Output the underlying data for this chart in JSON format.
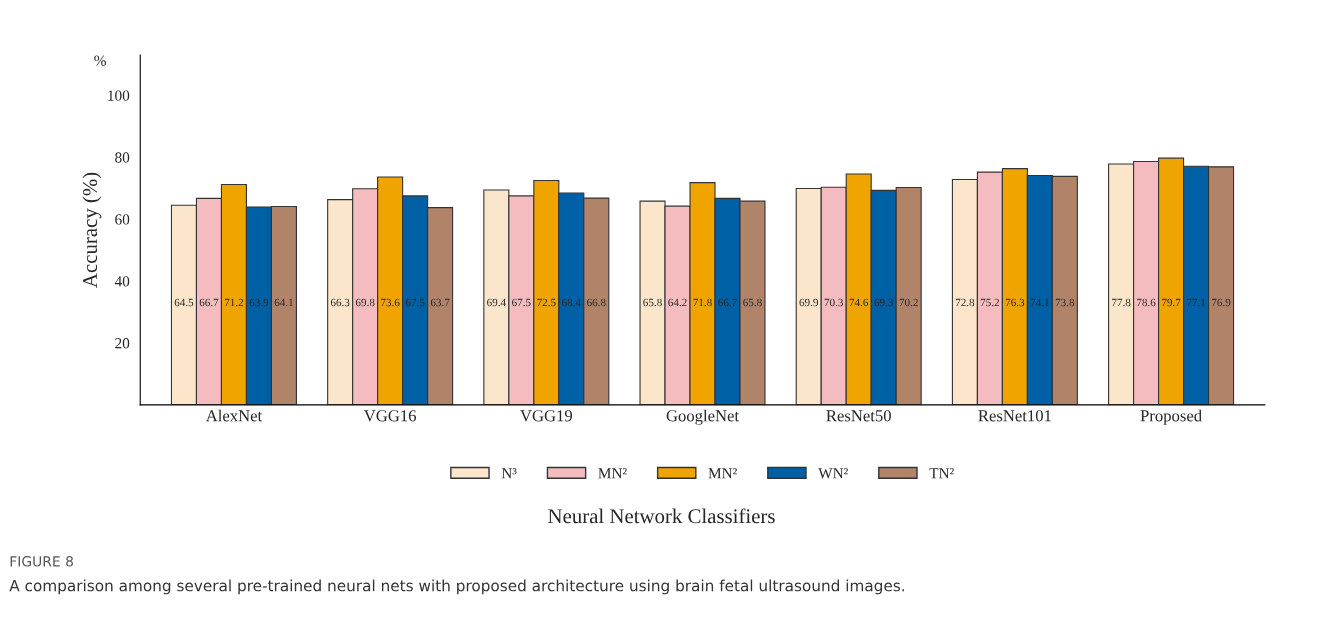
{
  "chart_data": {
    "type": "bar",
    "xlabel": "Neural Network Classifiers",
    "ylabel": "Accuracy (%)",
    "categories": [
      "AlexNet",
      "VGG16",
      "VGG19",
      "GoogleNet",
      "ResNet50",
      "ResNet101",
      "Proposed"
    ],
    "series": [
      {
        "name": "N³",
        "color": "#fbe6cc",
        "values": [
          64.5,
          66.3,
          69.4,
          65.8,
          69.9,
          72.8,
          77.8
        ]
      },
      {
        "name": "MN²",
        "color": "#f4bcbe",
        "values": [
          66.7,
          69.8,
          67.5,
          64.2,
          70.3,
          75.2,
          78.6
        ]
      },
      {
        "name": "MN²",
        "color": "#f0a400",
        "values": [
          71.2,
          73.6,
          72.5,
          71.8,
          74.6,
          76.3,
          79.7
        ]
      },
      {
        "name": "WN²",
        "color": "#0060a6",
        "values": [
          63.9,
          67.5,
          68.4,
          66.7,
          69.3,
          74.1,
          77.1
        ]
      },
      {
        "name": "TN²",
        "color": "#b1846a",
        "values": [
          64.1,
          63.7,
          66.8,
          65.8,
          70.2,
          73.8,
          76.9
        ]
      }
    ],
    "ylim": [
      0,
      113
    ],
    "yticks": [
      20,
      40,
      60,
      80,
      100
    ],
    "data_labels": true,
    "grid": false,
    "legend": "bottom",
    "annotations": [
      "%",
      "FIGURE 8",
      "A comparison among several pre-trained neural nets with proposed architecture using brain fetal ultrasound images."
    ]
  }
}
